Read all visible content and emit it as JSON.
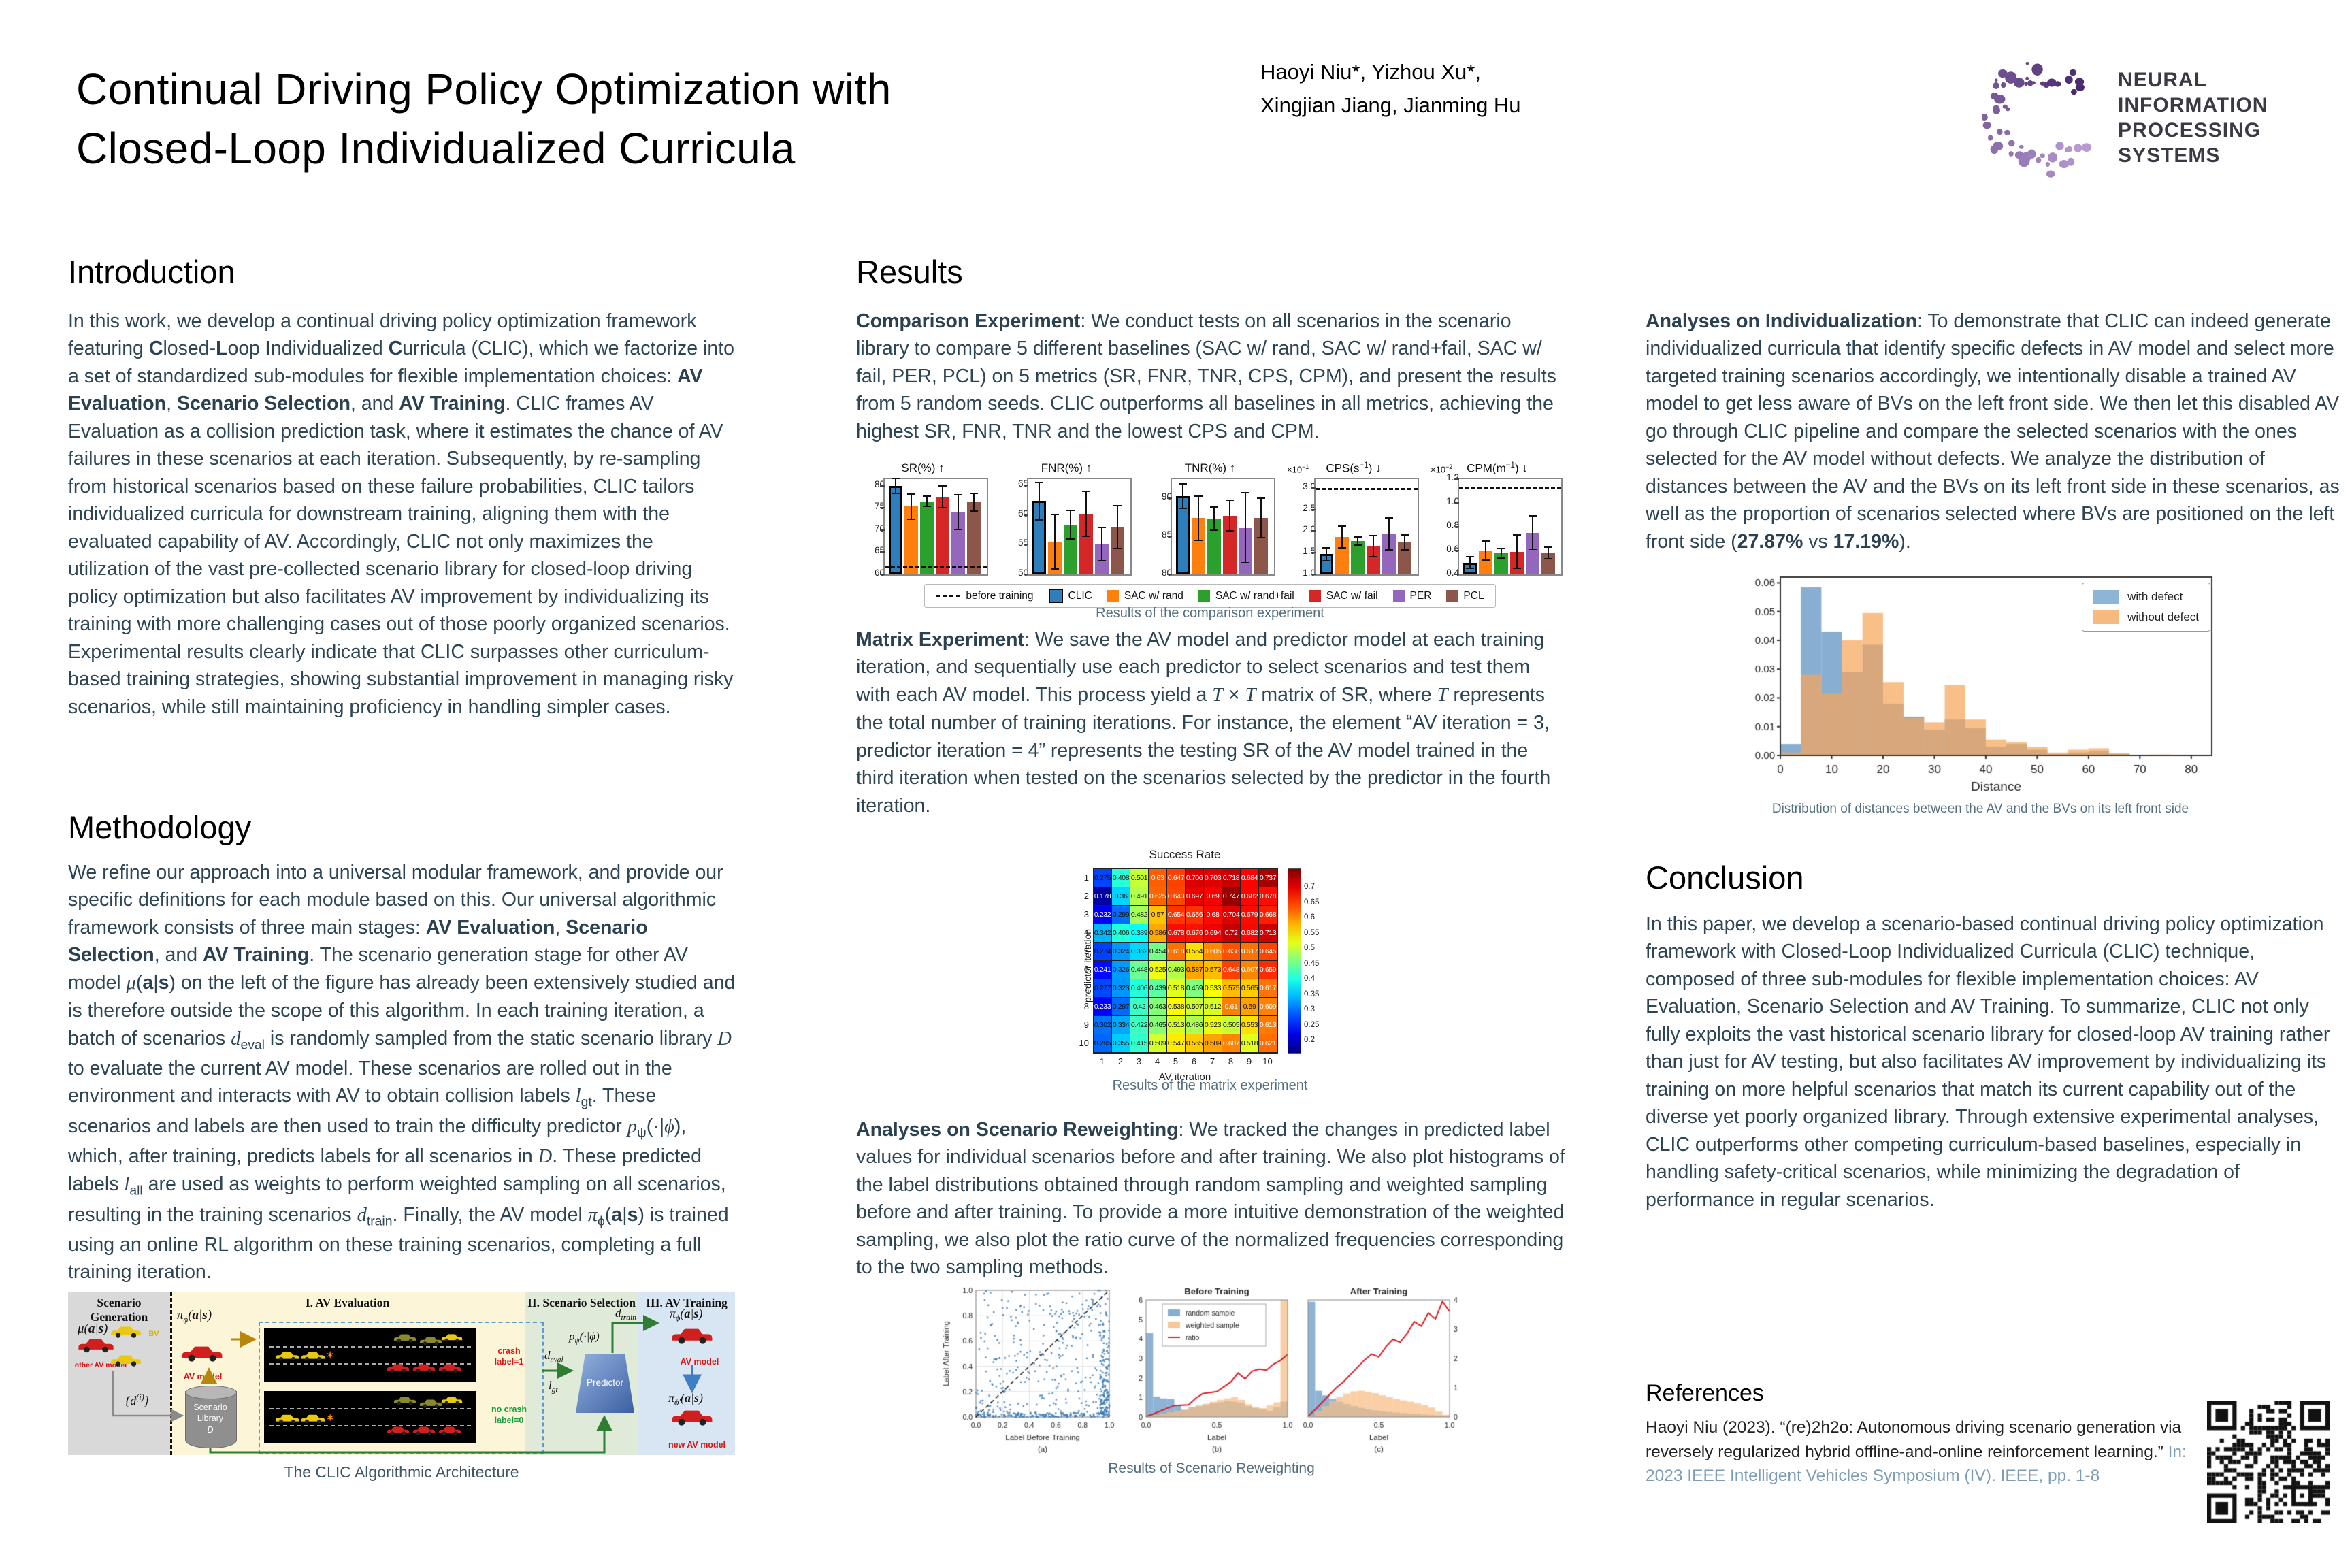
{
  "poster": {
    "title_html": "Continual Driving Policy Optimization with<br>Closed-Loop Individualized Curricula",
    "authors_html": "Haoyi Niu*, Yizhou Xu*,<br>Xingjian Jiang, Jianming Hu"
  },
  "logo": {
    "line1": "NEURAL INFORMATION",
    "line2": "PROCESSING SYSTEMS",
    "purple_dark": "#4a2a6e",
    "purple_light": "#b79ad0"
  },
  "columns": {
    "introduction": {
      "heading": "Introduction",
      "body_html": "In this work, we develop a continual driving policy optimization framework featuring <b>C</b>losed-<b>L</b>oop <b>I</b>ndividualized <b>C</b>urricula (CLIC), which we factorize into a set of standardized sub-modules for flexible implementation choices: <b>AV Evaluation</b>, <b>Scenario Selection</b>, and <b>AV Training</b>. CLIC frames AV Evaluation as a collision prediction task, where it estimates the chance of AV failures in these scenarios at each iteration. Subsequently, by re-sampling from historical scenarios based on these failure probabilities, CLIC tailors individualized curricula for downstream training, aligning them with the evaluated capability of AV. Accordingly, CLIC not only maximizes the utilization of the vast pre-collected scenario library for closed-loop driving policy optimization but also facilitates AV improvement by individualizing its training with more challenging cases out of those poorly organized scenarios. Experimental results clearly indicate that CLIC surpasses other curriculum-based training strategies, showing substantial improvement in managing risky scenarios, while still maintaining proficiency in handling simpler cases."
    },
    "methodology": {
      "heading": "Methodology",
      "body_html": "We refine our approach into a universal modular framework, and provide our specific definitions for each module based on this. Our universal algorithmic framework consists of three main stages: <b>AV Evaluation</b>, <b>Scenario Selection</b>, and <b>AV Training</b>. The scenario generation stage for other AV model <i>μ</i>(<b>a</b>|<b>s</b>) on the left of the figure has already been extensively studied and is therefore outside the scope of this algorithm. In each training iteration, a batch of scenarios <i>d</i><sub>eval</sub> is randomly sampled from the static scenario library <i>D</i> to evaluate the current AV model. These scenarios are rolled out in the environment and interacts with AV to obtain collision labels <i>l</i><sub>gt</sub>. These scenarios and labels are then used to train the difficulty predictor <i>p</i><sub>ψ</sub>(·|<i>ϕ</i>), which, after training, predicts labels for all scenarios in <i>D</i>. These predicted labels <i>l</i><sub>all</sub> are used as weights to perform weighted sampling on all scenarios, resulting in the training scenarios <i>d</i><sub>train</sub>. Finally, the AV model <i>π</i><sub>ϕ</sub>(<b>a</b>|<b>s</b>) is trained using an online RL algorithm on these training scenarios, completing a full training iteration."
    },
    "results": {
      "heading": "Results",
      "comparison_html": "<b>Comparison Experiment</b>: We conduct tests on all scenarios in the scenario library to compare 5 different baselines (SAC w/ rand, SAC w/ rand+fail, SAC w/ fail, PER, PCL) on 5 metrics (SR, FNR, TNR, CPS, CPM), and present the results from 5 random seeds. CLIC outperforms all baselines in all metrics, achieving the highest SR, FNR, TNR and the lowest CPS and CPM.",
      "matrix_html": "<b>Matrix Experiment</b>: We save the AV model and predictor model at each training iteration, and sequentially use each predictor to select scenarios and test them with each AV model. This process yield a <i>T</i> × <i>T</i> matrix of SR, where <i>T</i> represents the total number of training iterations. For instance, the element “AV iteration = 3, predictor iteration = 4” represents the testing SR of the AV model trained in the third iteration when tested on the scenarios selected by the predictor in the fourth iteration.",
      "reweighting_html": "<b>Analyses on Scenario Reweighting</b>: We tracked the changes in predicted label values for individual scenarios before and after training. We also plot histograms of the label distributions obtained through random sampling and weighted sampling before and after training. To provide a more intuitive demonstration of the weighted sampling, we also plot the ratio curve of the normalized frequencies corresponding to the two sampling methods.",
      "individualization_html": "<b>Analyses on Individualization</b>: To demonstrate that CLIC can indeed generate individualized curricula that identify specific defects in AV model and select more targeted training scenarios accordingly, we intentionally disable a trained AV model to get less aware of BVs on the left front side. We then let this disabled AV go through CLIC pipeline and compare the selected scenarios with the ones selected for the AV model without defects. We analyze the distribution of distances between the AV and the BVs on its left front side in these scenarios, as well as the proportion of scenarios selected where BVs are positioned on the left front side (<b>27.87%</b> vs <b>17.19%</b>)."
    },
    "conclusion": {
      "heading": "Conclusion",
      "body_html": "In this paper, we develop a scenario-based continual driving policy optimization framework with Closed-Loop Individualized Curricula (CLIC) technique, composed of three sub-modules for flexible implementation choices: AV Evaluation, Scenario Selection and AV Training. To summarize, CLIC not only fully exploits the vast historical scenario library for closed-loop AV training rather than just for AV testing, but also facilitates AV improvement by individualizing its training on more helpful scenarios that match its current capability out of the diverse yet poorly organized library. Through extensive experimental analyses, CLIC outperforms other competing curriculum-based baselines, especially in handling safety-critical scenarios, while minimizing the degradation of performance in regular scenarios."
    },
    "references": {
      "heading": "References",
      "entry_html": "Haoyi Niu (2023). “(re)2h2o: Autonomous driving scenario generation via reversely regularized hybrid offline-and-online reinforcement learning.” <span style=\"color:#7d9cb5\">In: 2023 IEEE Intelligent Vehicles Symposium (IV). IEEE, pp. 1-8</span>"
    }
  },
  "architecture": {
    "caption": "The CLIC Algorithmic  Architecture",
    "section_labels": [
      "Scenario Generation",
      "I. AV Evaluation",
      "II. Scenario Selection",
      "III. AV Training"
    ],
    "colors": {
      "generation_bg": "#d9d9d9",
      "evaluation_bg": "#fdf5d8",
      "selection_bg": "#dfead9",
      "training_bg": "#d8e6f4"
    },
    "labels": {
      "mu": "μ(<b>a</b>|<b>s</b>)",
      "other_av": "other AV model",
      "bv": "BV",
      "d_i": "{d<sup>(i)</sup>}",
      "library": "Scenario<br>Library<br><i>D</i>",
      "pi_phi": "π<sub>ϕ</sub>(<b>a</b>|<b>s</b>)",
      "av_model": "AV model",
      "d_eval": "d<sub>eval</sub>",
      "crash": "crash<br>label=1",
      "no_crash": "no crash<br>label=0",
      "l_gt": "l<sub>gt</sub>",
      "p_psi": "p<sub>ψ</sub>(·|ϕ)",
      "predictor": "Predictor",
      "d_train": "d<sub>train</sub>",
      "pi_phi_2": "π<sub>ϕ</sub>(<b>a</b>|<b>s</b>)",
      "pi_phi_prime": "π<sub>ϕ'</sub>(<b>a</b>|<b>s</b>)",
      "new_av_model": "new AV model"
    }
  },
  "charts": {
    "comparison": {
      "type": "bar",
      "caption": "Results  of the  comparison  experiment",
      "legend": [
        "before training",
        "CLIC",
        "SAC w/ rand",
        "SAC w/ rand+fail",
        "SAC w/ fail",
        "PER",
        "PCL"
      ],
      "series_colors": [
        "#2e7ebc",
        "#ff7f0e",
        "#2ca02c",
        "#d62728",
        "#9467bd",
        "#8c564b"
      ],
      "panels": [
        {
          "title_html": "SR(%) ↑",
          "scale_html": "",
          "ylim": [
            60,
            81.5
          ],
          "yticks": [
            60,
            65,
            70,
            75,
            80
          ],
          "baseline": 62,
          "values": [
            79.9,
            75.3,
            76.5,
            77.5,
            74.0,
            76.3
          ],
          "errors": [
            1.7,
            2.8,
            1.2,
            2.5,
            3.9,
            2.0
          ]
        },
        {
          "title_html": "FNR(%) ↑",
          "scale_html": "",
          "ylim": [
            50,
            66
          ],
          "yticks": [
            50,
            55,
            60,
            65
          ],
          "baseline": null,
          "values": [
            62.3,
            55.5,
            58.3,
            60.2,
            55.1,
            57.9
          ],
          "errors": [
            3.1,
            4.6,
            2.4,
            3.8,
            2.8,
            3.6
          ]
        },
        {
          "title_html": "TNR(%) ↑",
          "scale_html": "",
          "ylim": [
            80,
            92.5
          ],
          "yticks": [
            80,
            85,
            90
          ],
          "baseline": null,
          "values": [
            90.3,
            87.4,
            87.3,
            87.7,
            86.1,
            87.4
          ],
          "errors": [
            1.6,
            2.9,
            1.5,
            2.0,
            4.6,
            2.6
          ]
        },
        {
          "title_html": "CPS(s<sup>−1</sup>) ↓",
          "scale_html": "×10<sup>−1</sup>",
          "ylim": [
            1.0,
            3.2
          ],
          "yticks": [
            1.0,
            1.5,
            2.0,
            2.5,
            3.0
          ],
          "baseline": 3.0,
          "values": [
            1.47,
            1.86,
            1.77,
            1.65,
            1.93,
            1.74
          ],
          "errors": [
            0.15,
            0.25,
            0.1,
            0.24,
            0.37,
            0.17
          ]
        },
        {
          "title_html": "CPM(m<sup>−1</sup>) ↓",
          "scale_html": "×10<sup>−2</sup>",
          "ylim": [
            0.4,
            1.2
          ],
          "yticks": [
            0.4,
            0.6,
            0.8,
            1.0,
            1.2
          ],
          "baseline": 1.13,
          "values": [
            0.5,
            0.6,
            0.58,
            0.59,
            0.75,
            0.58
          ],
          "errors": [
            0.05,
            0.08,
            0.04,
            0.14,
            0.14,
            0.05
          ]
        }
      ]
    },
    "matrix": {
      "type": "heatmap",
      "title": "Success Rate",
      "xlabel": "AV iteration",
      "ylabel": "predictor iteration",
      "x": [
        1,
        2,
        3,
        4,
        5,
        6,
        7,
        8,
        9,
        10
      ],
      "y": [
        1,
        2,
        3,
        4,
        5,
        6,
        7,
        8,
        9,
        10
      ],
      "vmin": 0.16,
      "vmax": 0.76,
      "colorbar_ticks": [
        0.2,
        0.25,
        0.3,
        0.35,
        0.4,
        0.45,
        0.5,
        0.55,
        0.6,
        0.65,
        0.7
      ],
      "values": [
        [
          0.275,
          0.408,
          0.501,
          0.63,
          0.647,
          0.706,
          0.703,
          0.718,
          0.684,
          0.737
        ],
        [
          0.178,
          0.36,
          0.491,
          0.625,
          0.643,
          0.697,
          0.69,
          0.747,
          0.682,
          0.678
        ],
        [
          0.232,
          0.299,
          0.482,
          0.57,
          0.654,
          0.656,
          0.68,
          0.704,
          0.679,
          0.668
        ],
        [
          0.342,
          0.406,
          0.389,
          0.586,
          0.678,
          0.676,
          0.694,
          0.72,
          0.682,
          0.713
        ],
        [
          0.274,
          0.324,
          0.362,
          0.454,
          0.618,
          0.554,
          0.605,
          0.638,
          0.617,
          0.645
        ],
        [
          0.241,
          0.326,
          0.448,
          0.525,
          0.493,
          0.587,
          0.573,
          0.648,
          0.607,
          0.659
        ],
        [
          0.277,
          0.323,
          0.406,
          0.439,
          0.518,
          0.459,
          0.533,
          0.575,
          0.565,
          0.617
        ],
        [
          0.233,
          0.297,
          0.42,
          0.463,
          0.538,
          0.507,
          0.512,
          0.61,
          0.59,
          0.609
        ],
        [
          0.302,
          0.334,
          0.422,
          0.465,
          0.513,
          0.486,
          0.523,
          0.505,
          0.553,
          0.613
        ],
        [
          0.295,
          0.355,
          0.415,
          0.509,
          0.547,
          0.565,
          0.589,
          0.607,
          0.518,
          0.621
        ]
      ],
      "caption": "Results  of the  matrix  experiment"
    },
    "reweighting": {
      "type": "mixed",
      "caption": "Results  of Scenario  Reweighting",
      "legend": [
        "random sample",
        "weighted sample",
        "ratio"
      ],
      "colors": {
        "random": "#72a0c9",
        "weighted": "#f8bd82",
        "ratio": "#e01b1f"
      },
      "panels": [
        {
          "label": "(a)",
          "title": "",
          "xlabel": "Label Before Training",
          "ylabel": "Label After Training",
          "ticks": [
            0.0,
            0.2,
            0.4,
            0.6,
            0.8,
            1.0
          ],
          "scatter_seed": 7,
          "scatter_color": "#3b7cb8"
        },
        {
          "label": "(b)",
          "title": "Before Training",
          "xlabel": "Label",
          "yticks_left": [
            0,
            1,
            2,
            3,
            4,
            5,
            6
          ],
          "random_sample": [
            4.3,
            1.05,
            0.95,
            0.92,
            0.62,
            0.35,
            0.5,
            0.55,
            0.62,
            0.7,
            0.75,
            0.82,
            0.78,
            0.72,
            0.55,
            0.45,
            0.38,
            0.32,
            0.5,
            0.78
          ],
          "weighted_sample": [
            0.04,
            0.1,
            0.18,
            0.25,
            0.32,
            0.4,
            0.5,
            0.6,
            0.68,
            0.78,
            0.88,
            0.95,
            1.02,
            0.88,
            0.65,
            0.52,
            0.45,
            0.6,
            0.75,
            6.0
          ],
          "ratio": [
            0.02,
            0.15,
            0.3,
            0.45,
            0.58,
            0.6,
            0.62,
            0.95,
            1.2,
            1.25,
            1.3,
            1.55,
            1.8,
            2.25,
            1.95,
            2.35,
            2.45,
            2.4,
            2.7,
            2.9,
            3.2
          ]
        },
        {
          "label": "(c)",
          "title": "After Training",
          "xlabel": "Label",
          "yticks_right": [
            0,
            1,
            2,
            3,
            4
          ],
          "random_sample": [
            6.4,
            1.45,
            1.2,
            1.0,
            0.85,
            0.72,
            0.6,
            0.5,
            0.42,
            0.36,
            0.3,
            0.27,
            0.24,
            0.21,
            0.18,
            0.16,
            0.13,
            0.11,
            0.09,
            0.07
          ],
          "weighted_sample": [
            0.05,
            0.32,
            0.6,
            0.9,
            1.12,
            1.3,
            1.42,
            1.45,
            1.4,
            1.32,
            1.2,
            1.1,
            1.0,
            0.92,
            0.85,
            0.75,
            0.65,
            0.52,
            0.3,
            0.12
          ],
          "ratio": [
            0.02,
            0.25,
            0.5,
            0.75,
            1.0,
            1.2,
            1.45,
            1.7,
            1.95,
            2.15,
            2.05,
            2.4,
            2.65,
            2.55,
            2.85,
            3.25,
            3.1,
            3.55,
            3.35,
            3.95,
            3.6
          ]
        }
      ]
    },
    "distance": {
      "type": "histogram",
      "caption": "Distribution  of distances  between  the AV and  the BVs  on its left  front  side",
      "xlabel": "Distance",
      "xlim": [
        0,
        84
      ],
      "ylim": [
        0,
        0.062
      ],
      "xticks": [
        0,
        10,
        20,
        30,
        40,
        50,
        60,
        70,
        80
      ],
      "yticks": [
        0.0,
        0.01,
        0.02,
        0.03,
        0.04,
        0.05,
        0.06
      ],
      "bin_width": 4,
      "legend": [
        "with defect",
        "without defect"
      ],
      "legend_colors": [
        "#8cb5d6",
        "#f6b97e"
      ],
      "with_defect": [
        0.004,
        0.0585,
        0.043,
        0.029,
        0.0385,
        0.018,
        0.0135,
        0.009,
        0.0125,
        0.0095,
        0.003,
        0.004,
        0.002,
        0.0005,
        0.001,
        0.0015,
        0.0005,
        0,
        0
      ],
      "without_defect": [
        0.001,
        0.028,
        0.0215,
        0.04,
        0.0495,
        0.0255,
        0.013,
        0.0115,
        0.0245,
        0.0125,
        0.0055,
        0.0045,
        0.003,
        0.001,
        0.002,
        0.0025,
        0.0008,
        0,
        0.0003
      ]
    }
  }
}
